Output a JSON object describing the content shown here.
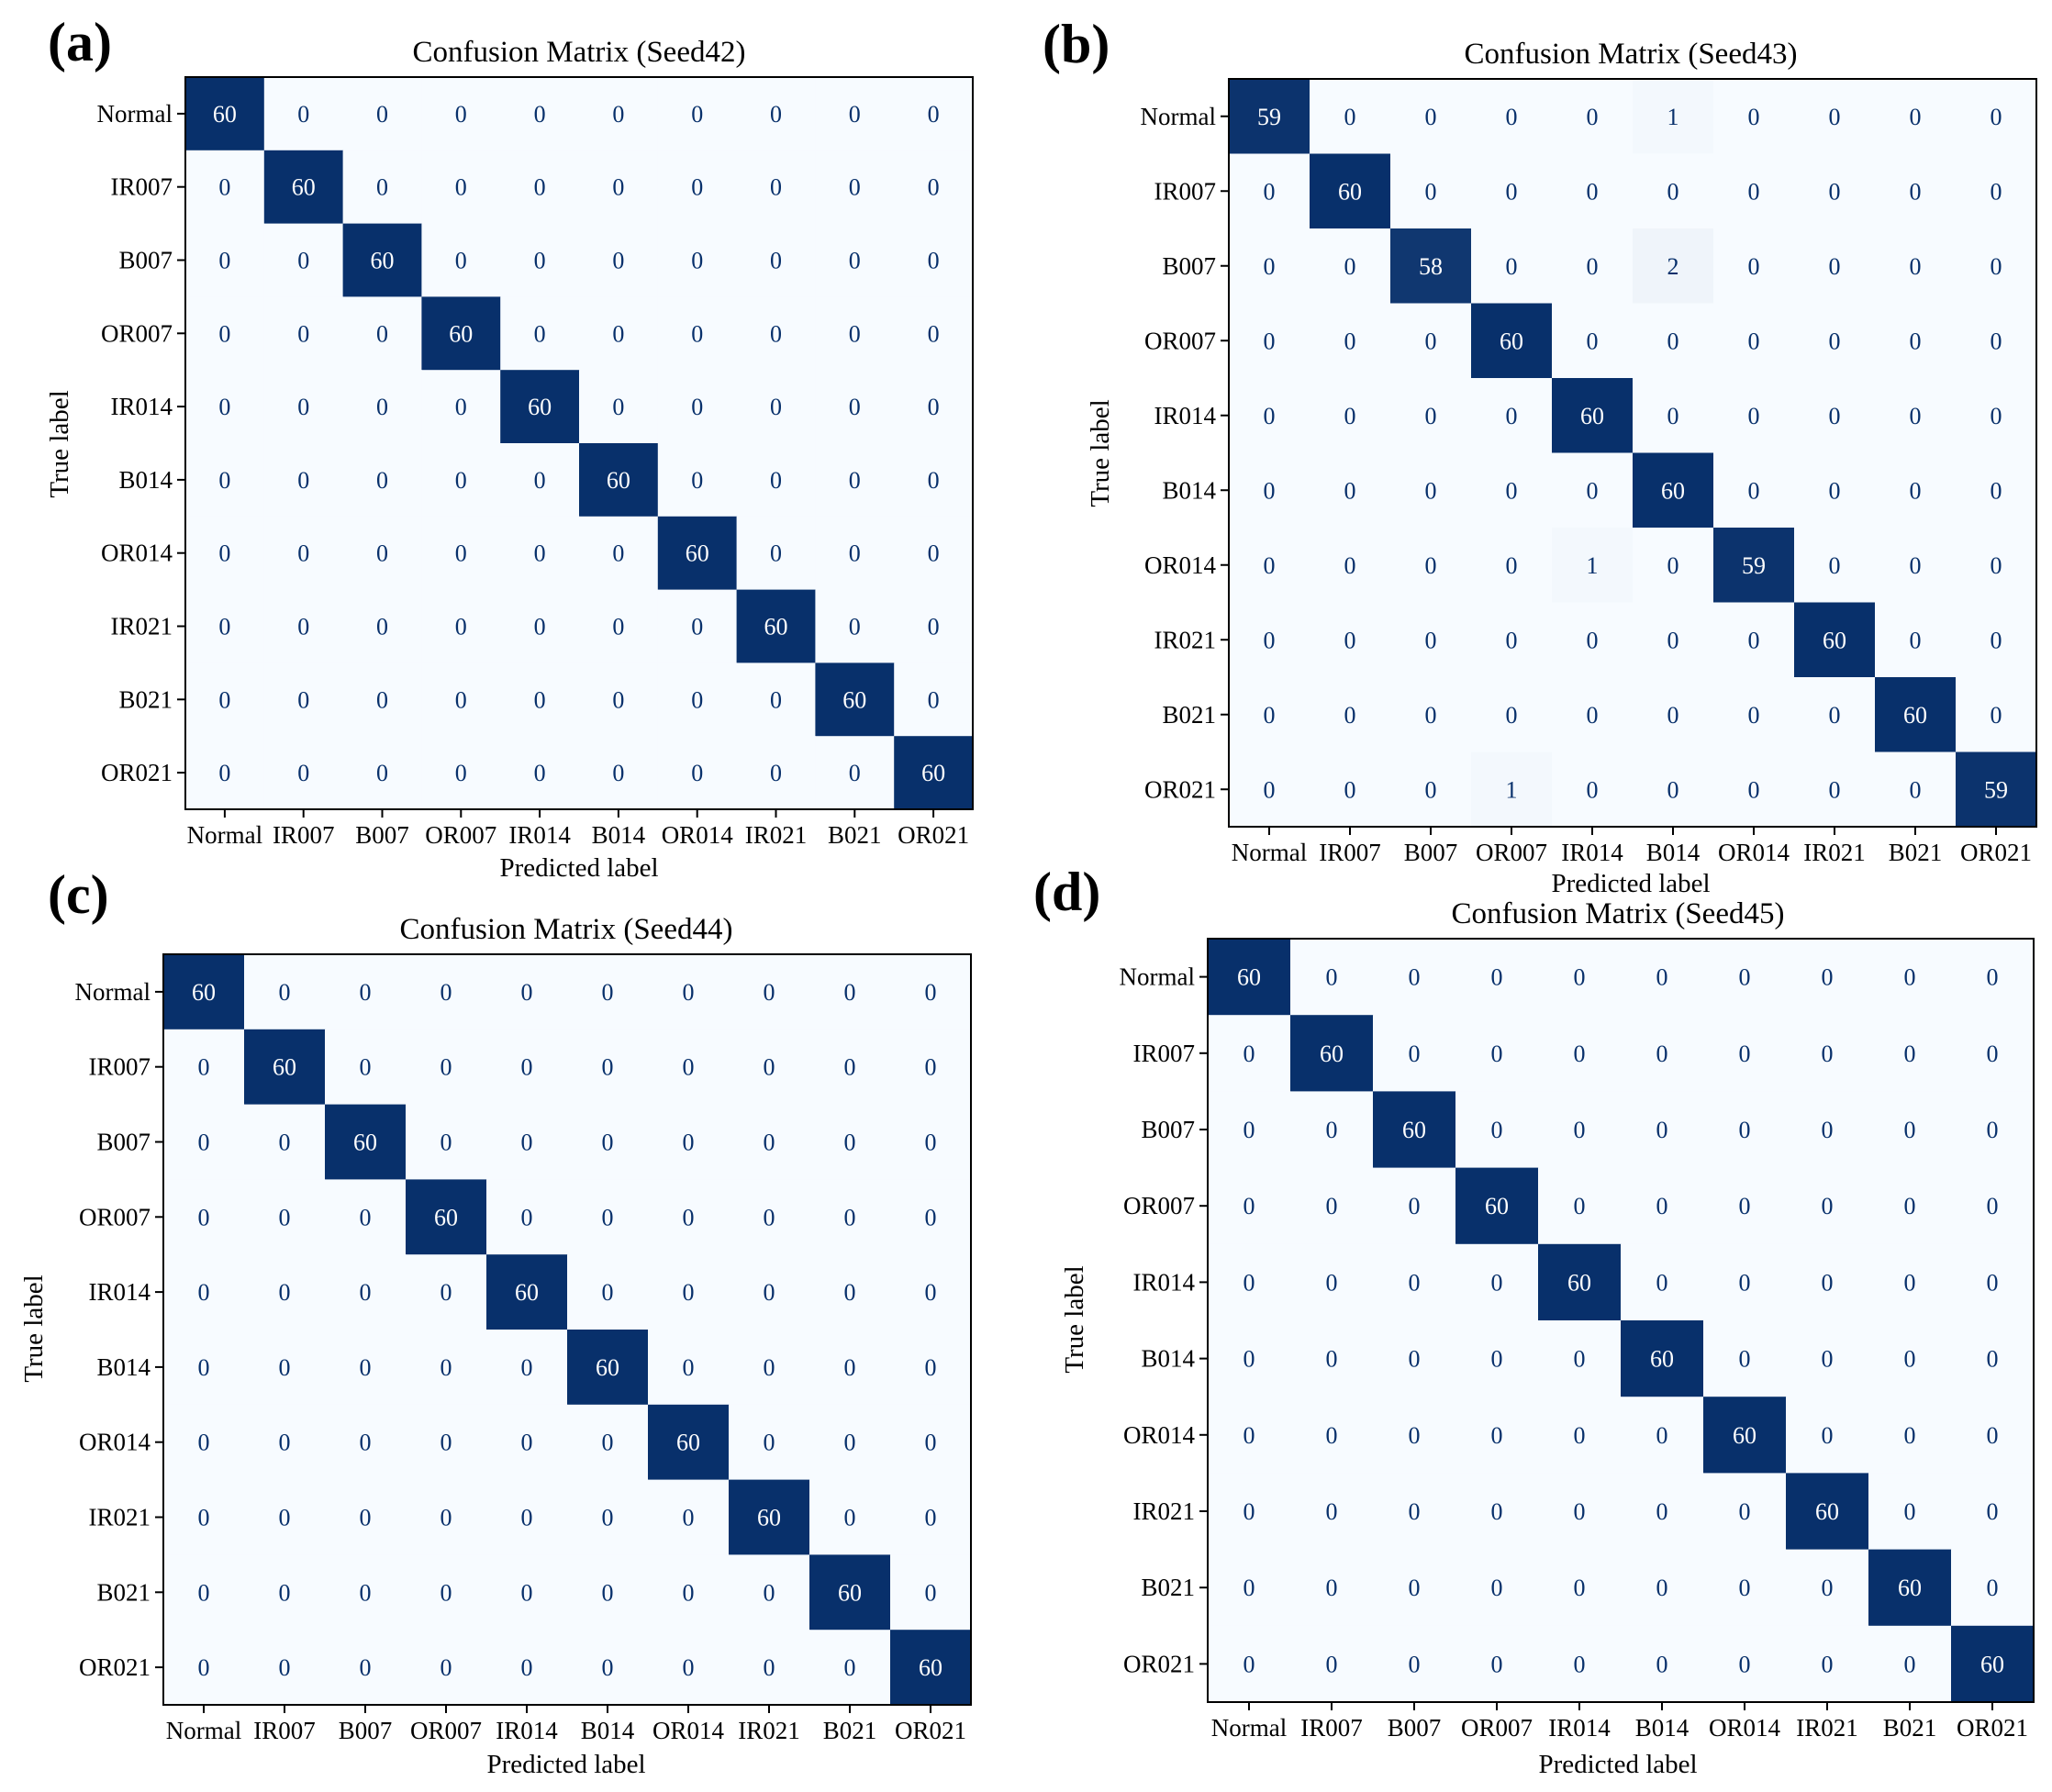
{
  "chart_data": [
    {
      "type": "heatmap",
      "panel": "(a)",
      "title": "Confusion Matrix (Seed42)",
      "xlabel": "Predicted label",
      "ylabel": "True label",
      "labels": [
        "Normal",
        "IR007",
        "B007",
        "OR007",
        "IR014",
        "B014",
        "OR014",
        "IR021",
        "B021",
        "OR021"
      ],
      "vmax": 60,
      "matrix": [
        [
          60,
          0,
          0,
          0,
          0,
          0,
          0,
          0,
          0,
          0
        ],
        [
          0,
          60,
          0,
          0,
          0,
          0,
          0,
          0,
          0,
          0
        ],
        [
          0,
          0,
          60,
          0,
          0,
          0,
          0,
          0,
          0,
          0
        ],
        [
          0,
          0,
          0,
          60,
          0,
          0,
          0,
          0,
          0,
          0
        ],
        [
          0,
          0,
          0,
          0,
          60,
          0,
          0,
          0,
          0,
          0
        ],
        [
          0,
          0,
          0,
          0,
          0,
          60,
          0,
          0,
          0,
          0
        ],
        [
          0,
          0,
          0,
          0,
          0,
          0,
          60,
          0,
          0,
          0
        ],
        [
          0,
          0,
          0,
          0,
          0,
          0,
          0,
          60,
          0,
          0
        ],
        [
          0,
          0,
          0,
          0,
          0,
          0,
          0,
          0,
          60,
          0
        ],
        [
          0,
          0,
          0,
          0,
          0,
          0,
          0,
          0,
          0,
          60
        ]
      ]
    },
    {
      "type": "heatmap",
      "panel": "(b)",
      "title": "Confusion Matrix (Seed43)",
      "xlabel": "Predicted label",
      "ylabel": "True label",
      "labels": [
        "Normal",
        "IR007",
        "B007",
        "OR007",
        "IR014",
        "B014",
        "OR014",
        "IR021",
        "B021",
        "OR021"
      ],
      "vmax": 60,
      "matrix": [
        [
          59,
          0,
          0,
          0,
          0,
          1,
          0,
          0,
          0,
          0
        ],
        [
          0,
          60,
          0,
          0,
          0,
          0,
          0,
          0,
          0,
          0
        ],
        [
          0,
          0,
          58,
          0,
          0,
          2,
          0,
          0,
          0,
          0
        ],
        [
          0,
          0,
          0,
          60,
          0,
          0,
          0,
          0,
          0,
          0
        ],
        [
          0,
          0,
          0,
          0,
          60,
          0,
          0,
          0,
          0,
          0
        ],
        [
          0,
          0,
          0,
          0,
          0,
          60,
          0,
          0,
          0,
          0
        ],
        [
          0,
          0,
          0,
          0,
          1,
          0,
          59,
          0,
          0,
          0
        ],
        [
          0,
          0,
          0,
          0,
          0,
          0,
          0,
          60,
          0,
          0
        ],
        [
          0,
          0,
          0,
          0,
          0,
          0,
          0,
          0,
          60,
          0
        ],
        [
          0,
          0,
          0,
          1,
          0,
          0,
          0,
          0,
          0,
          59
        ]
      ]
    },
    {
      "type": "heatmap",
      "panel": "(c)",
      "title": "Confusion Matrix (Seed44)",
      "xlabel": "Predicted label",
      "ylabel": "True label",
      "labels": [
        "Normal",
        "IR007",
        "B007",
        "OR007",
        "IR014",
        "B014",
        "OR014",
        "IR021",
        "B021",
        "OR021"
      ],
      "vmax": 60,
      "matrix": [
        [
          60,
          0,
          0,
          0,
          0,
          0,
          0,
          0,
          0,
          0
        ],
        [
          0,
          60,
          0,
          0,
          0,
          0,
          0,
          0,
          0,
          0
        ],
        [
          0,
          0,
          60,
          0,
          0,
          0,
          0,
          0,
          0,
          0
        ],
        [
          0,
          0,
          0,
          60,
          0,
          0,
          0,
          0,
          0,
          0
        ],
        [
          0,
          0,
          0,
          0,
          60,
          0,
          0,
          0,
          0,
          0
        ],
        [
          0,
          0,
          0,
          0,
          0,
          60,
          0,
          0,
          0,
          0
        ],
        [
          0,
          0,
          0,
          0,
          0,
          0,
          60,
          0,
          0,
          0
        ],
        [
          0,
          0,
          0,
          0,
          0,
          0,
          0,
          60,
          0,
          0
        ],
        [
          0,
          0,
          0,
          0,
          0,
          0,
          0,
          0,
          60,
          0
        ],
        [
          0,
          0,
          0,
          0,
          0,
          0,
          0,
          0,
          0,
          60
        ]
      ]
    },
    {
      "type": "heatmap",
      "panel": "(d)",
      "title": "Confusion Matrix (Seed45)",
      "xlabel": "Predicted label",
      "ylabel": "True label",
      "labels": [
        "Normal",
        "IR007",
        "B007",
        "OR007",
        "IR014",
        "B014",
        "OR014",
        "IR021",
        "B021",
        "OR021"
      ],
      "vmax": 60,
      "matrix": [
        [
          60,
          0,
          0,
          0,
          0,
          0,
          0,
          0,
          0,
          0
        ],
        [
          0,
          60,
          0,
          0,
          0,
          0,
          0,
          0,
          0,
          0
        ],
        [
          0,
          0,
          60,
          0,
          0,
          0,
          0,
          0,
          0,
          0
        ],
        [
          0,
          0,
          0,
          60,
          0,
          0,
          0,
          0,
          0,
          0
        ],
        [
          0,
          0,
          0,
          0,
          60,
          0,
          0,
          0,
          0,
          0
        ],
        [
          0,
          0,
          0,
          0,
          0,
          60,
          0,
          0,
          0,
          0
        ],
        [
          0,
          0,
          0,
          0,
          0,
          0,
          60,
          0,
          0,
          0
        ],
        [
          0,
          0,
          0,
          0,
          0,
          0,
          0,
          60,
          0,
          0
        ],
        [
          0,
          0,
          0,
          0,
          0,
          0,
          0,
          0,
          60,
          0
        ],
        [
          0,
          0,
          0,
          0,
          0,
          0,
          0,
          0,
          0,
          60
        ]
      ]
    }
  ],
  "colors": {
    "high": "#08306b",
    "low": "#f7fbff",
    "text_on_dark": "#ffffff",
    "text_on_light": "#08306b"
  }
}
